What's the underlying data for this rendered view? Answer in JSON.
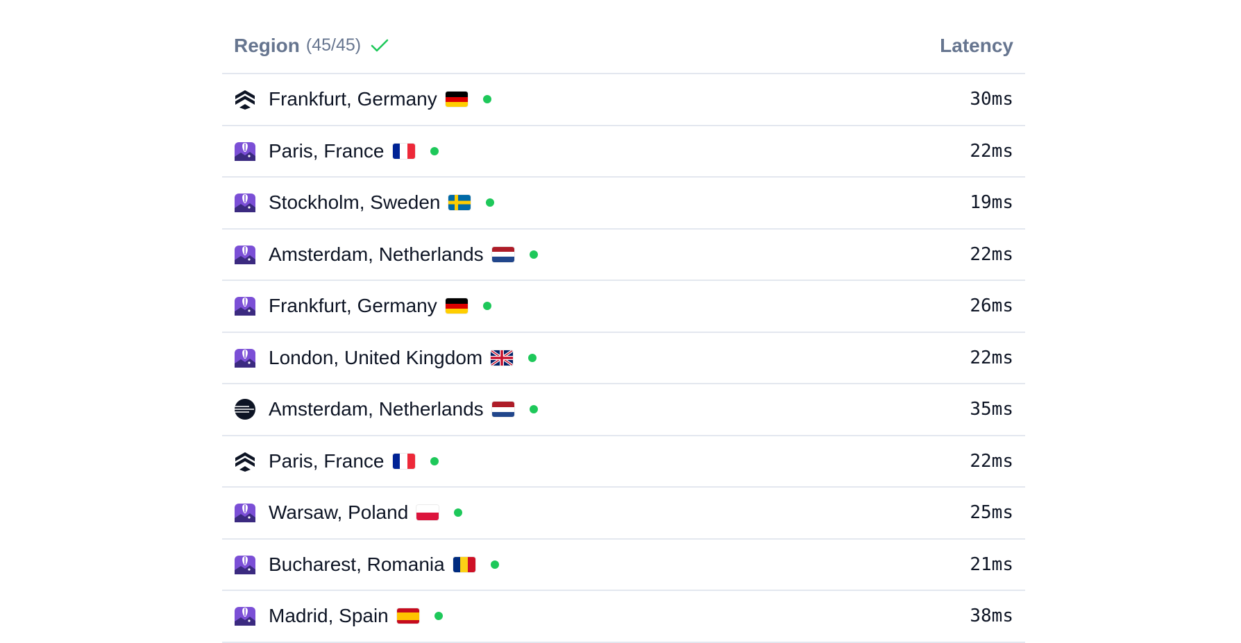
{
  "header": {
    "region_label": "Region",
    "region_count": "(45/45)",
    "status_icon": "check-icon",
    "status_color": "#1ec85a",
    "latency_label": "Latency"
  },
  "colors": {
    "online": "#1ec85a",
    "header_text": "#66758f",
    "divider": "#e3e7ef"
  },
  "rows": [
    {
      "provider": "koyeb",
      "city": "Frankfurt, Germany",
      "flag": "de",
      "status": "online",
      "latency": "30ms"
    },
    {
      "provider": "fly",
      "city": "Paris, France",
      "flag": "fr",
      "status": "online",
      "latency": "22ms"
    },
    {
      "provider": "fly",
      "city": "Stockholm, Sweden",
      "flag": "se",
      "status": "online",
      "latency": "19ms"
    },
    {
      "provider": "fly",
      "city": "Amsterdam, Netherlands",
      "flag": "nl",
      "status": "online",
      "latency": "22ms"
    },
    {
      "provider": "fly",
      "city": "Frankfurt, Germany",
      "flag": "de",
      "status": "online",
      "latency": "26ms"
    },
    {
      "provider": "fly",
      "city": "London, United Kingdom",
      "flag": "gb",
      "status": "online",
      "latency": "22ms"
    },
    {
      "provider": "railway",
      "city": "Amsterdam, Netherlands",
      "flag": "nl",
      "status": "online",
      "latency": "35ms"
    },
    {
      "provider": "koyeb",
      "city": "Paris, France",
      "flag": "fr",
      "status": "online",
      "latency": "22ms"
    },
    {
      "provider": "fly",
      "city": "Warsaw, Poland",
      "flag": "pl",
      "status": "online",
      "latency": "25ms"
    },
    {
      "provider": "fly",
      "city": "Bucharest, Romania",
      "flag": "ro",
      "status": "online",
      "latency": "21ms"
    },
    {
      "provider": "fly",
      "city": "Madrid, Spain",
      "flag": "es",
      "status": "online",
      "latency": "38ms"
    }
  ]
}
